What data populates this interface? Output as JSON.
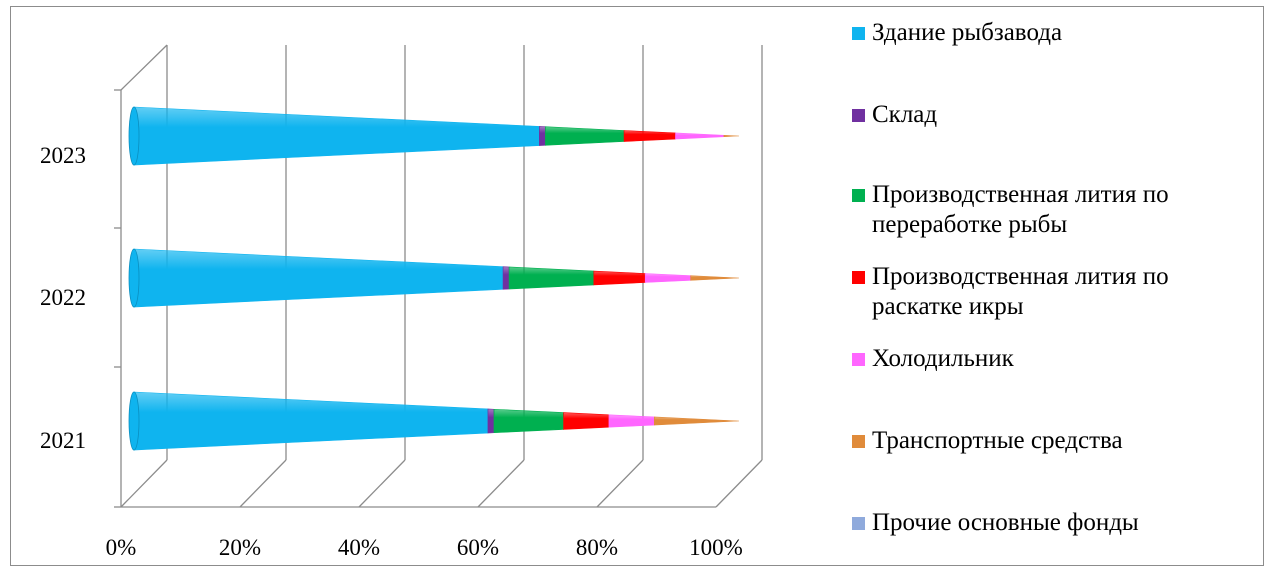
{
  "chart_data": {
    "type": "bar",
    "subtype": "100%-stacked horizontal cone (3D)",
    "title": "",
    "xlabel": "",
    "ylabel": "",
    "categories": [
      "2021",
      "2022",
      "2023"
    ],
    "x_ticks": [
      "0%",
      "20%",
      "40%",
      "60%",
      "80%",
      "100%"
    ],
    "xlim": [
      0,
      100
    ],
    "grid": true,
    "legend_position": "right",
    "series": [
      {
        "name": "Здание рыбзавода",
        "color": "#0fb4ef",
        "values": [
          58.5,
          61.0,
          67.0
        ]
      },
      {
        "name": "Склад",
        "color": "#7030a0",
        "values": [
          1.0,
          1.0,
          1.0
        ]
      },
      {
        "name": "Производственная лития по переработке рыбы",
        "color": "#00b050",
        "values": [
          11.5,
          14.0,
          13.0
        ]
      },
      {
        "name": "Производственная лития по раскатке икры",
        "color": "#ff0000",
        "values": [
          7.5,
          8.5,
          8.5
        ]
      },
      {
        "name": "Холодильник",
        "color": "#ff66ff",
        "values": [
          7.5,
          7.5,
          8.0
        ]
      },
      {
        "name": "Транспортные средства",
        "color": "#e08b3a",
        "values": [
          14.0,
          8.0,
          2.5
        ]
      },
      {
        "name": "Прочие основные фонды",
        "color": "#8faadc",
        "values": [
          0.0,
          0.0,
          0.0
        ]
      }
    ]
  }
}
